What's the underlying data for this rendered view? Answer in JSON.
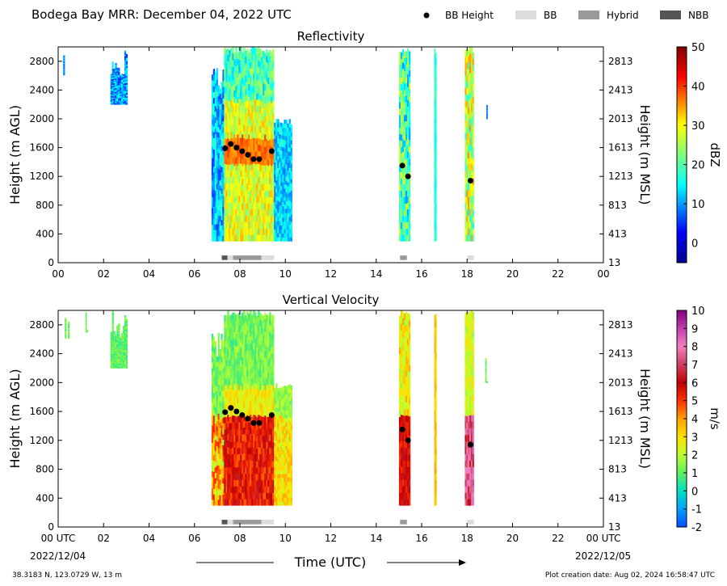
{
  "header": {
    "title": "Bodega Bay MRR:  December 04, 2022 UTC",
    "legend": [
      {
        "label": "BB Height",
        "symbol": "dot",
        "color": "#000000"
      },
      {
        "label": "BB",
        "symbol": "rect",
        "color": "#dcdcdc"
      },
      {
        "label": "Hybrid",
        "symbol": "rect",
        "color": "#999999"
      },
      {
        "label": "NBB",
        "symbol": "rect",
        "color": "#555555"
      }
    ]
  },
  "footer": {
    "location": "38.3183 N, 123.0729 W, 13 m",
    "creation_date": "Plot creation date: Aug 02, 2024 16:58:47 UTC",
    "start_date": "2022/12/04",
    "end_date": "2022/12/05",
    "xlabel": "Time (UTC)"
  },
  "chart_data": [
    {
      "type": "heatmap",
      "title": "Reflectivity",
      "ylabel": "Height (m AGL)",
      "ylabel_right": "Height (m MSL)",
      "colorbar_label": "dBZ",
      "colorbar_range": [
        -5,
        50
      ],
      "colorbar_ticks": [
        0,
        10,
        20,
        30,
        40,
        50
      ],
      "colorscale": "jet",
      "xlim": [
        0,
        24
      ],
      "x_ticks": [
        "00",
        "02",
        "04",
        "06",
        "08",
        "10",
        "12",
        "14",
        "16",
        "18",
        "20",
        "22",
        "00"
      ],
      "ylim": [
        0,
        3000
      ],
      "y_ticks": [
        0,
        400,
        800,
        1200,
        1600,
        2000,
        2400,
        2800
      ],
      "y_ticks_right": [
        "13",
        "413",
        "813",
        "1213",
        "1613",
        "2013",
        "2413",
        "2813"
      ],
      "bb_height": {
        "x": [
          7.35,
          7.6,
          7.85,
          8.1,
          8.35,
          8.6,
          8.85,
          9.4,
          15.15,
          15.4,
          18.15
        ],
        "y": [
          1590,
          1650,
          1600,
          1550,
          1500,
          1440,
          1440,
          1550,
          1350,
          1200,
          1140
        ]
      },
      "bb_type_bar": [
        {
          "start": 7.2,
          "end": 7.45,
          "kind": "NBB"
        },
        {
          "start": 7.45,
          "end": 7.7,
          "kind": "BB"
        },
        {
          "start": 7.7,
          "end": 8.95,
          "kind": "Hybrid"
        },
        {
          "start": 8.95,
          "end": 9.5,
          "kind": "BB"
        },
        {
          "start": 15.05,
          "end": 15.35,
          "kind": "Hybrid"
        },
        {
          "start": 18.0,
          "end": 18.3,
          "kind": "BB"
        }
      ]
    },
    {
      "type": "heatmap",
      "title": "Vertical Velocity",
      "ylabel": "Height (m AGL)",
      "ylabel_right": "Height (m MSL)",
      "colorbar_label": "m/s",
      "colorbar_range": [
        -2,
        10
      ],
      "colorbar_ticks": [
        -2,
        -1,
        0,
        1,
        2,
        3,
        4,
        5,
        6,
        7,
        8,
        9,
        10
      ],
      "colorscale": "velocity",
      "xlim": [
        0,
        24
      ],
      "x_ticks": [
        "00 UTC",
        "02",
        "04",
        "06",
        "08",
        "10",
        "12",
        "14",
        "16",
        "18",
        "20",
        "22",
        "00 UTC"
      ],
      "ylim": [
        0,
        3000
      ],
      "y_ticks": [
        0,
        400,
        800,
        1200,
        1600,
        2000,
        2400,
        2800
      ],
      "y_ticks_right": [
        "13",
        "413",
        "813",
        "1213",
        "1613",
        "2013",
        "2413",
        "2813"
      ],
      "bb_height": {
        "x": [
          7.35,
          7.6,
          7.85,
          8.1,
          8.35,
          8.6,
          8.85,
          9.4,
          15.15,
          15.4,
          18.15
        ],
        "y": [
          1590,
          1650,
          1600,
          1550,
          1500,
          1440,
          1440,
          1550,
          1350,
          1200,
          1140
        ]
      },
      "bb_type_bar": [
        {
          "start": 7.2,
          "end": 7.45,
          "kind": "NBB"
        },
        {
          "start": 7.45,
          "end": 7.7,
          "kind": "BB"
        },
        {
          "start": 7.7,
          "end": 8.95,
          "kind": "Hybrid"
        },
        {
          "start": 8.95,
          "end": 9.5,
          "kind": "BB"
        },
        {
          "start": 15.05,
          "end": 15.35,
          "kind": "Hybrid"
        },
        {
          "start": 18.0,
          "end": 18.3,
          "kind": "BB"
        }
      ]
    }
  ]
}
